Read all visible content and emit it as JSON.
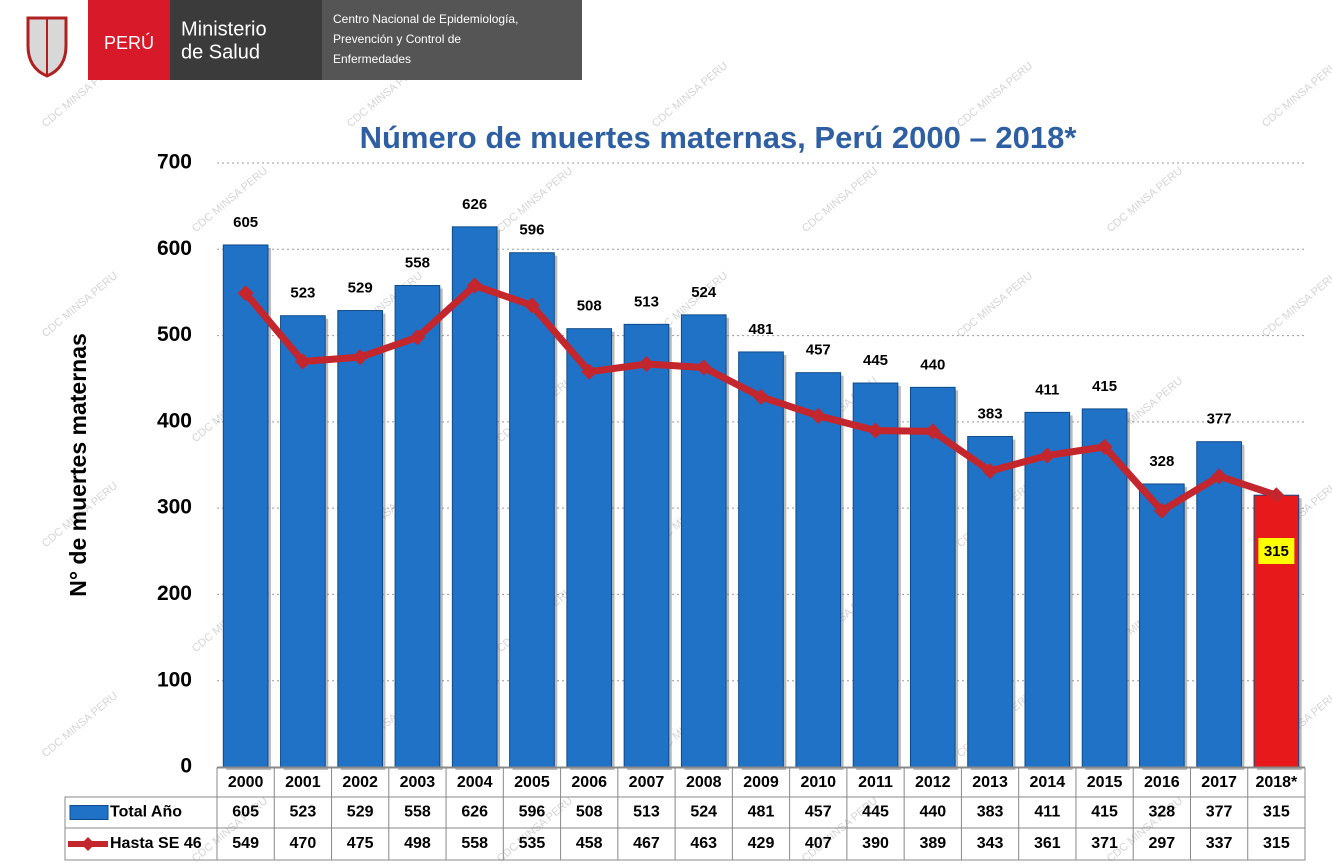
{
  "header": {
    "country": "PERÚ",
    "ministry": [
      "Ministerio",
      "de Salud"
    ],
    "center": [
      "Centro Nacional de Epidemiología,",
      "Prevención y Control de",
      "Enfermedades"
    ],
    "watermark": "CDC MINSA PERU"
  },
  "chart_data": {
    "type": "bar",
    "title": "Número de muertes maternas, Perú 2000 – 2018*",
    "y_label": "N° de muertes maternas",
    "categories": [
      "2000",
      "2001",
      "2002",
      "2003",
      "2004",
      "2005",
      "2006",
      "2007",
      "2008",
      "2009",
      "2010",
      "2011",
      "2012",
      "2013",
      "2014",
      "2015",
      "2016",
      "2017",
      "2018*"
    ],
    "series": [
      {
        "name": "Total Año",
        "type": "bar",
        "color": "#1f72c6",
        "bar_colors": [
          "#1f72c6",
          "#1f72c6",
          "#1f72c6",
          "#1f72c6",
          "#1f72c6",
          "#1f72c6",
          "#1f72c6",
          "#1f72c6",
          "#1f72c6",
          "#1f72c6",
          "#1f72c6",
          "#1f72c6",
          "#1f72c6",
          "#1f72c6",
          "#1f72c6",
          "#1f72c6",
          "#1f72c6",
          "#1f72c6",
          "#e8191a"
        ],
        "values": [
          605,
          523,
          529,
          558,
          626,
          596,
          508,
          513,
          524,
          481,
          457,
          445,
          440,
          383,
          411,
          415,
          328,
          377,
          315
        ]
      },
      {
        "name": "Hasta SE 46",
        "type": "line",
        "color": "#c4262d",
        "values": [
          549,
          470,
          475,
          498,
          558,
          535,
          458,
          467,
          463,
          429,
          407,
          390,
          389,
          343,
          361,
          371,
          297,
          337,
          315
        ]
      }
    ],
    "ylim": [
      0,
      700
    ],
    "yticks": [
      0,
      100,
      200,
      300,
      400,
      500,
      600,
      700
    ],
    "grid": true,
    "label_highlight_color": "#ffff00"
  }
}
